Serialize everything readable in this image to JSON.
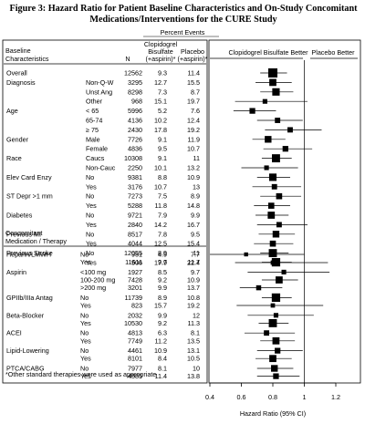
{
  "title": "Figure 3: Hazard Ratio for Patient Baseline Characteristics and On-Study Concomitant Medications/Interventions for the CURE Study",
  "headers": {
    "percent_events": "Percent Events",
    "baseline": [
      "Baseline",
      "Characteristics"
    ],
    "n": "N",
    "clopidogrel": [
      "Clopidogrel",
      "Bisulfate",
      "(+aspirin)*"
    ],
    "placebo": [
      "Placebo",
      "(+aspirin)*"
    ],
    "clopidogrel_better": "Clopidogrel Bisulfate Better",
    "placebo_better": "Placebo Better",
    "concomitant": [
      "Concomitant",
      "Medication / Therapy"
    ]
  },
  "footnote": "*Other standard therapies were used as appropriate",
  "chart_data": {
    "type": "forest",
    "xlabel": "Hazard Ratio (95% CI)",
    "xlim": [
      0.4,
      1.2
    ],
    "xticks": [
      "0.4",
      "0.6",
      "0.8",
      "1",
      "1.2"
    ],
    "reference_line": 1.0,
    "rows": [
      {
        "label": "Overall",
        "sub": "",
        "n": "12562",
        "clop": "9.3",
        "plac": "11.4",
        "hr": 0.8,
        "lo": 0.72,
        "hi": 0.89,
        "size": 1.0,
        "section": "baseline",
        "gap": 0
      },
      {
        "label": "Diagnosis",
        "sub": "Non-Q-W",
        "n": "3295",
        "clop": "12.7",
        "plac": "15.5",
        "hr": 0.8,
        "lo": 0.69,
        "hi": 0.92,
        "size": 0.7,
        "section": "baseline",
        "gap": 0
      },
      {
        "label": "",
        "sub": "Unst Ang",
        "n": "8298",
        "clop": "7.3",
        "plac": "8.7",
        "hr": 0.82,
        "lo": 0.72,
        "hi": 0.93,
        "size": 0.75,
        "section": "baseline",
        "gap": 0
      },
      {
        "label": "",
        "sub": "Other",
        "n": "968",
        "clop": "15.1",
        "plac": "19.7",
        "hr": 0.75,
        "lo": 0.56,
        "hi": 1.02,
        "size": 0.35,
        "section": "baseline",
        "gap": 0
      },
      {
        "label": "Age",
        "sub": "< 65",
        "n": "5996",
        "clop": "5.2",
        "plac": "7.6",
        "hr": 0.67,
        "lo": 0.55,
        "hi": 0.82,
        "size": 0.5,
        "section": "baseline",
        "gap": 0
      },
      {
        "label": "",
        "sub": "65-74",
        "n": "4136",
        "clop": "10.2",
        "plac": "12.4",
        "hr": 0.83,
        "lo": 0.7,
        "hi": 0.99,
        "size": 0.45,
        "section": "baseline",
        "gap": 0
      },
      {
        "label": "",
        "sub": "≥ 75",
        "n": "2430",
        "clop": "17.8",
        "plac": "19.2",
        "hr": 0.91,
        "lo": 0.75,
        "hi": 1.11,
        "size": 0.45,
        "section": "baseline",
        "gap": 0
      },
      {
        "label": "Gender",
        "sub": "Male",
        "n": "7726",
        "clop": "9.1",
        "plac": "11.9",
        "hr": 0.77,
        "lo": 0.67,
        "hi": 0.88,
        "size": 0.65,
        "section": "baseline",
        "gap": 0
      },
      {
        "label": "",
        "sub": "Female",
        "n": "4836",
        "clop": "9.5",
        "plac": "10.7",
        "hr": 0.88,
        "lo": 0.74,
        "hi": 1.05,
        "size": 0.5,
        "section": "baseline",
        "gap": 0
      },
      {
        "label": "Race",
        "sub": "Caucs",
        "n": "10308",
        "clop": "9.1",
        "plac": "11",
        "hr": 0.82,
        "lo": 0.73,
        "hi": 0.92,
        "size": 0.85,
        "section": "baseline",
        "gap": 0
      },
      {
        "label": "",
        "sub": "Non-Cauc",
        "n": "2250",
        "clop": "10.1",
        "plac": "13.2",
        "hr": 0.76,
        "lo": 0.6,
        "hi": 0.96,
        "size": 0.35,
        "section": "baseline",
        "gap": 0
      },
      {
        "label": "Elev Card Enzy",
        "sub": "No",
        "n": "9381",
        "clop": "8.8",
        "plac": "10.9",
        "hr": 0.8,
        "lo": 0.7,
        "hi": 0.91,
        "size": 0.75,
        "section": "baseline",
        "gap": 0
      },
      {
        "label": "",
        "sub": "Yes",
        "n": "3176",
        "clop": "10.7",
        "plac": "13",
        "hr": 0.81,
        "lo": 0.67,
        "hi": 0.98,
        "size": 0.45,
        "section": "baseline",
        "gap": 0
      },
      {
        "label": "ST Depr >1 mm",
        "sub": "No",
        "n": "7273",
        "clop": "7.5",
        "plac": "8.9",
        "hr": 0.84,
        "lo": 0.72,
        "hi": 0.98,
        "size": 0.55,
        "section": "baseline",
        "gap": 0
      },
      {
        "label": "",
        "sub": "Yes",
        "n": "5288",
        "clop": "11.8",
        "plac": "14.8",
        "hr": 0.79,
        "lo": 0.68,
        "hi": 0.91,
        "size": 0.55,
        "section": "baseline",
        "gap": 0
      },
      {
        "label": "Diabetes",
        "sub": "No",
        "n": "9721",
        "clop": "7.9",
        "plac": "9.9",
        "hr": 0.79,
        "lo": 0.69,
        "hi": 0.9,
        "size": 0.7,
        "section": "baseline",
        "gap": 0
      },
      {
        "label": "",
        "sub": "Yes",
        "n": "2840",
        "clop": "14.2",
        "plac": "16.7",
        "hr": 0.84,
        "lo": 0.7,
        "hi": 1.02,
        "size": 0.45,
        "section": "baseline",
        "gap": 0
      },
      {
        "label": "Previous MI",
        "sub": "No",
        "n": "8517",
        "clop": "7.8",
        "plac": "9.5",
        "hr": 0.82,
        "lo": 0.71,
        "hi": 0.94,
        "size": 0.65,
        "section": "baseline",
        "gap": 0
      },
      {
        "label": "",
        "sub": "Yes",
        "n": "4044",
        "clop": "12.5",
        "plac": "15.4",
        "hr": 0.8,
        "lo": 0.68,
        "hi": 0.93,
        "size": 0.55,
        "section": "baseline",
        "gap": 0
      },
      {
        "label": "Previous Stroke",
        "sub": "No",
        "n": "12055",
        "clop": "8.9",
        "plac": "11",
        "hr": 0.8,
        "lo": 0.72,
        "hi": 0.9,
        "size": 0.85,
        "section": "baseline",
        "gap": 0
      },
      {
        "label": "",
        "sub": "Yes",
        "n": "506",
        "clop": "17.9",
        "plac": "22.4",
        "hr": 0.8,
        "lo": 0.56,
        "hi": 1.15,
        "size": 0.3,
        "section": "baseline",
        "gap": 0
      },
      {
        "label": "Heparin/LMWH",
        "sub": "No",
        "n": "951",
        "clop": "4.9",
        "plac": "7.7",
        "hr": 0.63,
        "lo": 0.4,
        "hi": 1.0,
        "size": 0.25,
        "section": "concomitant",
        "gap": 1
      },
      {
        "label": "",
        "sub": "Yes",
        "n": "11611",
        "clop": "9.7",
        "plac": "11.7",
        "hr": 0.82,
        "lo": 0.73,
        "hi": 0.92,
        "size": 0.9,
        "section": "concomitant",
        "gap": 0
      },
      {
        "label": "Aspirin",
        "sub": "<100 mg",
        "n": "1927",
        "clop": "8.5",
        "plac": "9.7",
        "hr": 0.87,
        "lo": 0.64,
        "hi": 1.16,
        "size": 0.35,
        "section": "concomitant",
        "gap": 1
      },
      {
        "label": "",
        "sub": "100-200 mg",
        "n": "7428",
        "clop": "9.2",
        "plac": "10.9",
        "hr": 0.84,
        "lo": 0.73,
        "hi": 0.96,
        "size": 0.7,
        "section": "concomitant",
        "gap": 0
      },
      {
        "label": "",
        "sub": ">200 mg",
        "n": "3201",
        "clop": "9.9",
        "plac": "13.7",
        "hr": 0.71,
        "lo": 0.59,
        "hi": 0.86,
        "size": 0.4,
        "section": "concomitant",
        "gap": 0
      },
      {
        "label": "GPIIb/IIIa Antag",
        "sub": "No",
        "n": "11739",
        "clop": "8.9",
        "plac": "10.8",
        "hr": 0.82,
        "lo": 0.73,
        "hi": 0.92,
        "size": 0.9,
        "section": "concomitant",
        "gap": 1
      },
      {
        "label": "",
        "sub": "Yes",
        "n": "823",
        "clop": "15.7",
        "plac": "19.2",
        "hr": 0.8,
        "lo": 0.57,
        "hi": 1.12,
        "size": 0.3,
        "section": "concomitant",
        "gap": 0
      },
      {
        "label": "Beta-Blocker",
        "sub": "No",
        "n": "2032",
        "clop": "9.9",
        "plac": "12",
        "hr": 0.82,
        "lo": 0.64,
        "hi": 1.06,
        "size": 0.35,
        "section": "concomitant",
        "gap": 1
      },
      {
        "label": "",
        "sub": "Yes",
        "n": "10530",
        "clop": "9.2",
        "plac": "11.3",
        "hr": 0.8,
        "lo": 0.71,
        "hi": 0.9,
        "size": 0.85,
        "section": "concomitant",
        "gap": 0
      },
      {
        "label": "ACEI",
        "sub": "No",
        "n": "4813",
        "clop": "6.3",
        "plac": "8.1",
        "hr": 0.76,
        "lo": 0.62,
        "hi": 0.94,
        "size": 0.45,
        "section": "concomitant",
        "gap": 1
      },
      {
        "label": "",
        "sub": "Yes",
        "n": "7749",
        "clop": "11.2",
        "plac": "13.5",
        "hr": 0.82,
        "lo": 0.72,
        "hi": 0.94,
        "size": 0.7,
        "section": "concomitant",
        "gap": 0
      },
      {
        "label": "Lipid-Lowering",
        "sub": "No",
        "n": "4461",
        "clop": "10.9",
        "plac": "13.1",
        "hr": 0.83,
        "lo": 0.7,
        "hi": 0.99,
        "size": 0.5,
        "section": "concomitant",
        "gap": 1
      },
      {
        "label": "",
        "sub": "Yes",
        "n": "8101",
        "clop": "8.4",
        "plac": "10.5",
        "hr": 0.8,
        "lo": 0.69,
        "hi": 0.92,
        "size": 0.7,
        "section": "concomitant",
        "gap": 0
      },
      {
        "label": "PTCA/CABG",
        "sub": "No",
        "n": "7977",
        "clop": "8.1",
        "plac": "10",
        "hr": 0.81,
        "lo": 0.7,
        "hi": 0.93,
        "size": 0.65,
        "section": "concomitant",
        "gap": 1
      },
      {
        "label": "",
        "sub": "Yes",
        "n": "4585",
        "clop": "11.4",
        "plac": "13.8",
        "hr": 0.82,
        "lo": 0.7,
        "hi": 0.97,
        "size": 0.5,
        "section": "concomitant",
        "gap": 0
      }
    ]
  }
}
